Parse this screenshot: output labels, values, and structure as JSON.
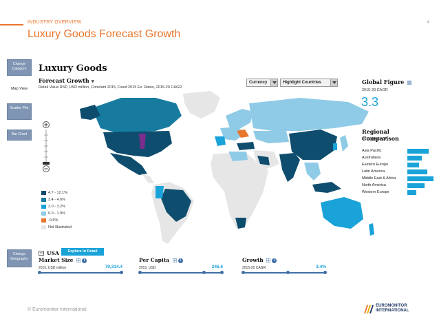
{
  "slide": {
    "section_label": "INDUSTRY OVERVIEW",
    "page_number": "4",
    "title": "Luxury Goods Forecast Growth",
    "footer": "© Euromonitor International",
    "logo_line1": "EUROMONITOR",
    "logo_line2": "INTERNATIONAL"
  },
  "sidebar": {
    "change_category": "Change Category",
    "map_view": "Map View",
    "scatter_plot": "Scatter Plot",
    "bar_chart": "Bar Chart",
    "change_geography": "Change Geography"
  },
  "app": {
    "title": "Luxury Goods",
    "forecast_title": "Forecast Growth",
    "forecast_subtitle": "Retail Value RSP, USD million, Constant 2015, Fixed 2015 Ex. Rates, 2015-20 CAGR",
    "currency_label": "Currency",
    "highlight_label": "Highlight Countries"
  },
  "legend": [
    {
      "label": "4.7 - 12.1%",
      "color": "#0e4d6e"
    },
    {
      "label": "3.4 - 4.6%",
      "color": "#177ba0"
    },
    {
      "label": "2.0 - 3.2%",
      "color": "#1aa3d9"
    },
    {
      "label": "0.0 - 1.9%",
      "color": "#8fcbe7"
    },
    {
      "label": "-0.6%",
      "color": "#e8762c"
    },
    {
      "label": "Not Illustrated",
      "color": "#e6e6e6"
    }
  ],
  "global_figure": {
    "title": "Global Figure",
    "subtitle": "2015-20 CAGR",
    "value": "3.3"
  },
  "regional_comparison": {
    "title": "Regional Comparison",
    "subtitle": "2015-20 CAGR",
    "regions": [
      {
        "name": "Asia Pacific",
        "value": 4.2
      },
      {
        "name": "Australasia",
        "value": 2.9
      },
      {
        "name": "Eastern Europe",
        "value": 2.4
      },
      {
        "name": "Latin America",
        "value": 4.0
      },
      {
        "name": "Middle East & Africa",
        "value": 5.2
      },
      {
        "name": "North America",
        "value": 3.4
      },
      {
        "name": "Western Europe",
        "value": 1.8
      }
    ]
  },
  "bottom": {
    "country": "USA",
    "explore_label": "Explore in Detail",
    "market_size": {
      "title": "Market Size",
      "sub": "2015, USD million",
      "value": "79,314.4"
    },
    "per_capita": {
      "title": "Per Capita",
      "sub": "2015, USD",
      "value": "246.6"
    },
    "growth": {
      "title": "Growth",
      "sub": "2015-20 CAGR",
      "value": "3.4%"
    }
  }
}
